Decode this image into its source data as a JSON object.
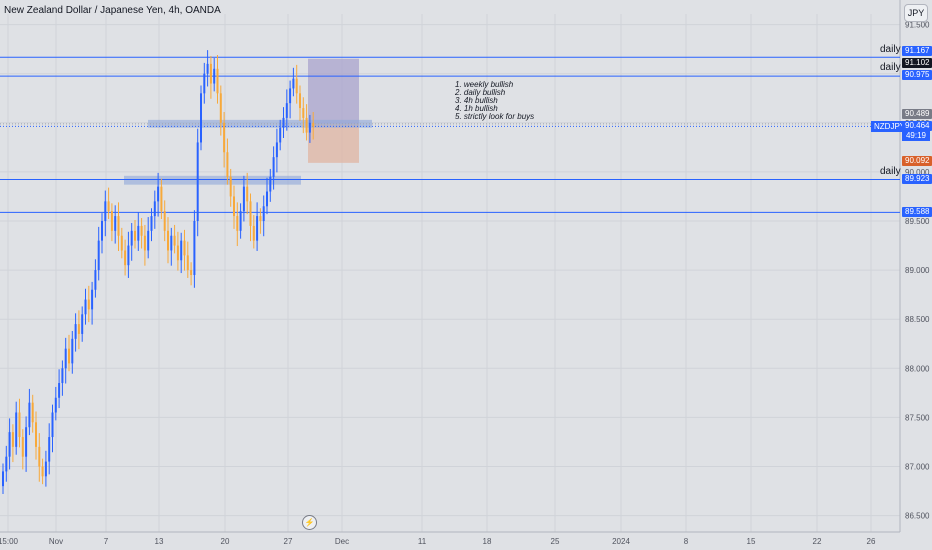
{
  "header": {
    "title": "New Zealand Dollar / Japanese Yen, 4h, OANDA",
    "currency_button": "JPY",
    "bolt_icon": "lightning-icon"
  },
  "annotations": {
    "daily_label": "daily",
    "notes": [
      "1. weekly bullish",
      "2. daily bullish",
      "3. 4h bullish",
      "4. 1h bullish",
      "5. strictly look for buys"
    ]
  },
  "price_tags": {
    "level_91167": "91.167",
    "level_91102": "91.102",
    "level_90975": "90.975",
    "level_90489": "90.489",
    "symbol": "NZDJPY",
    "last_price": "90.464",
    "countdown": "49:19",
    "level_90092": "90.092",
    "level_89923": "89.923",
    "level_89588": "89.588"
  },
  "colors": {
    "background": "#dfe1e5",
    "up_candle": "#2962ff",
    "down_candle": "#f7a93b",
    "level_line": "#2962ff",
    "zone_fill": "#8fa6d9",
    "target_zone": "#a9a3cc",
    "stop_zone": "#e0b8a6",
    "stop_tag": "#d8602a",
    "dark_tag": "#131722"
  },
  "chart_data": {
    "type": "candlestick",
    "title": "New Zealand Dollar / Japanese Yen, 4h, OANDA",
    "ylim": [
      86.4,
      91.6
    ],
    "y_ticks": [
      "91.500",
      "91.000",
      "90.500",
      "90.000",
      "89.500",
      "89.000",
      "88.500",
      "88.000",
      "87.500",
      "87.000",
      "86.500"
    ],
    "y_tick_values": [
      91.5,
      91.0,
      90.5,
      90.0,
      89.5,
      89.0,
      88.5,
      88.0,
      87.5,
      87.0,
      86.5
    ],
    "x_ticks": [
      "15:00",
      "Nov",
      "7",
      "13",
      "20",
      "27",
      "Dec",
      "11",
      "18",
      "25",
      "2024",
      "8",
      "15",
      "22",
      "26"
    ],
    "horizontal_levels": [
      91.167,
      90.975,
      89.923,
      89.588
    ],
    "zones": [
      {
        "from": 90.45,
        "to": 90.53,
        "start": "13",
        "end": "Dec"
      },
      {
        "from": 89.87,
        "to": 89.96,
        "start": "7",
        "end": "27"
      }
    ],
    "position": {
      "entry": 90.489,
      "target": 91.102,
      "stop": 90.092
    },
    "last_price": 90.464,
    "closes": [
      86.95,
      87.1,
      87.35,
      87.2,
      87.55,
      87.3,
      87.1,
      87.4,
      87.65,
      87.45,
      87.2,
      87.0,
      86.9,
      87.05,
      87.3,
      87.55,
      87.7,
      87.85,
      88.0,
      88.2,
      88.05,
      88.3,
      88.45,
      88.35,
      88.55,
      88.7,
      88.6,
      88.8,
      89.0,
      89.3,
      89.5,
      89.7,
      89.6,
      89.4,
      89.55,
      89.35,
      89.2,
      89.05,
      89.25,
      89.4,
      89.3,
      89.45,
      89.35,
      89.2,
      89.4,
      89.55,
      89.7,
      89.85,
      89.6,
      89.4,
      89.2,
      89.35,
      89.25,
      89.1,
      89.3,
      89.15,
      89.0,
      88.95,
      89.5,
      90.3,
      90.8,
      91.0,
      91.1,
      90.9,
      91.05,
      90.8,
      90.5,
      90.2,
      89.95,
      89.75,
      89.55,
      89.4,
      89.6,
      89.85,
      89.7,
      89.45,
      89.3,
      89.55,
      89.5,
      89.65,
      89.8,
      89.95,
      90.15,
      90.3,
      90.45,
      90.55,
      90.7,
      90.85,
      90.95,
      90.8,
      90.65,
      90.55,
      90.4,
      90.5,
      90.46
    ]
  }
}
